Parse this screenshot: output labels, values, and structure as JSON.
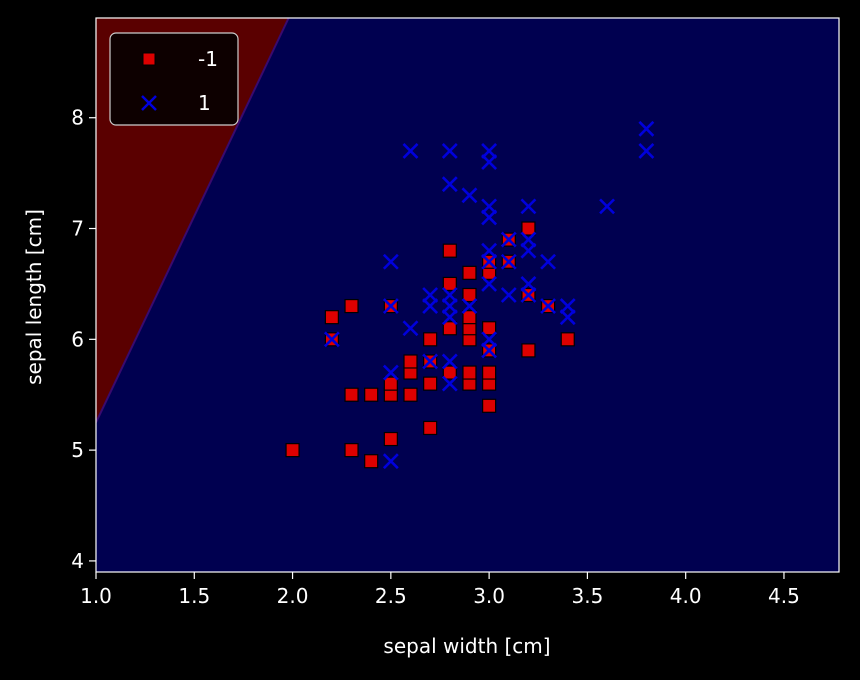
{
  "chart_data": {
    "type": "scatter",
    "title": "",
    "xlabel": "sepal width [cm]",
    "ylabel": "sepal length [cm]",
    "xlim": [
      1.0,
      4.78
    ],
    "ylim": [
      3.9,
      8.9
    ],
    "xticks": [
      "1.0",
      "1.5",
      "2.0",
      "2.5",
      "3.0",
      "3.5",
      "4.0",
      "4.5"
    ],
    "yticks": [
      "4",
      "5",
      "6",
      "7",
      "8"
    ],
    "grid": false,
    "legend_position": "top-left",
    "background": "#000000",
    "decision_regions": [
      {
        "label": "-1",
        "color": "#5a0000",
        "side": "left of boundary"
      },
      {
        "label": "1",
        "color": "#000050",
        "side": "right of boundary"
      }
    ],
    "decision_boundary": [
      [
        1.0,
        5.25
      ],
      [
        1.98,
        8.9
      ]
    ],
    "series": [
      {
        "name": "-1",
        "marker": "square",
        "color": "#dd0000",
        "points": [
          [
            2.0,
            5.0
          ],
          [
            2.2,
            6.0
          ],
          [
            2.2,
            6.2
          ],
          [
            2.3,
            5.0
          ],
          [
            2.3,
            5.5
          ],
          [
            2.3,
            6.3
          ],
          [
            2.4,
            4.9
          ],
          [
            2.4,
            5.5
          ],
          [
            2.5,
            5.1
          ],
          [
            2.5,
            5.5
          ],
          [
            2.5,
            5.6
          ],
          [
            2.5,
            6.3
          ],
          [
            2.6,
            5.5
          ],
          [
            2.6,
            5.7
          ],
          [
            2.6,
            5.8
          ],
          [
            2.7,
            5.2
          ],
          [
            2.7,
            5.6
          ],
          [
            2.7,
            5.8
          ],
          [
            2.7,
            6.0
          ],
          [
            2.8,
            5.7
          ],
          [
            2.8,
            6.1
          ],
          [
            2.8,
            6.5
          ],
          [
            2.8,
            6.8
          ],
          [
            2.9,
            5.6
          ],
          [
            2.9,
            5.7
          ],
          [
            2.9,
            6.0
          ],
          [
            2.9,
            6.1
          ],
          [
            2.9,
            6.2
          ],
          [
            2.9,
            6.4
          ],
          [
            2.9,
            6.6
          ],
          [
            3.0,
            5.4
          ],
          [
            3.0,
            5.6
          ],
          [
            3.0,
            5.7
          ],
          [
            3.0,
            5.9
          ],
          [
            3.0,
            6.1
          ],
          [
            3.0,
            6.6
          ],
          [
            3.0,
            6.7
          ],
          [
            3.1,
            6.7
          ],
          [
            3.1,
            6.9
          ],
          [
            3.2,
            5.9
          ],
          [
            3.2,
            6.4
          ],
          [
            3.2,
            7.0
          ],
          [
            3.3,
            6.3
          ],
          [
            3.4,
            6.0
          ]
        ]
      },
      {
        "name": "1",
        "marker": "x",
        "color": "#0000dd",
        "points": [
          [
            2.2,
            6.0
          ],
          [
            2.5,
            4.9
          ],
          [
            2.5,
            5.7
          ],
          [
            2.5,
            6.3
          ],
          [
            2.5,
            6.7
          ],
          [
            2.6,
            6.1
          ],
          [
            2.6,
            7.7
          ],
          [
            2.7,
            5.8
          ],
          [
            2.7,
            6.3
          ],
          [
            2.7,
            6.4
          ],
          [
            2.8,
            5.6
          ],
          [
            2.8,
            5.8
          ],
          [
            2.8,
            6.2
          ],
          [
            2.8,
            6.3
          ],
          [
            2.8,
            6.4
          ],
          [
            2.8,
            7.4
          ],
          [
            2.8,
            7.7
          ],
          [
            2.9,
            6.3
          ],
          [
            2.9,
            7.3
          ],
          [
            3.0,
            5.9
          ],
          [
            3.0,
            6.0
          ],
          [
            3.0,
            6.5
          ],
          [
            3.0,
            6.7
          ],
          [
            3.0,
            6.8
          ],
          [
            3.0,
            7.1
          ],
          [
            3.0,
            7.2
          ],
          [
            3.0,
            7.6
          ],
          [
            3.0,
            7.7
          ],
          [
            3.1,
            6.4
          ],
          [
            3.1,
            6.7
          ],
          [
            3.1,
            6.9
          ],
          [
            3.2,
            6.4
          ],
          [
            3.2,
            6.5
          ],
          [
            3.2,
            6.8
          ],
          [
            3.2,
            6.9
          ],
          [
            3.2,
            7.2
          ],
          [
            3.3,
            6.3
          ],
          [
            3.3,
            6.7
          ],
          [
            3.4,
            6.2
          ],
          [
            3.4,
            6.3
          ],
          [
            3.6,
            7.2
          ],
          [
            3.8,
            7.7
          ],
          [
            3.8,
            7.9
          ]
        ]
      }
    ]
  }
}
